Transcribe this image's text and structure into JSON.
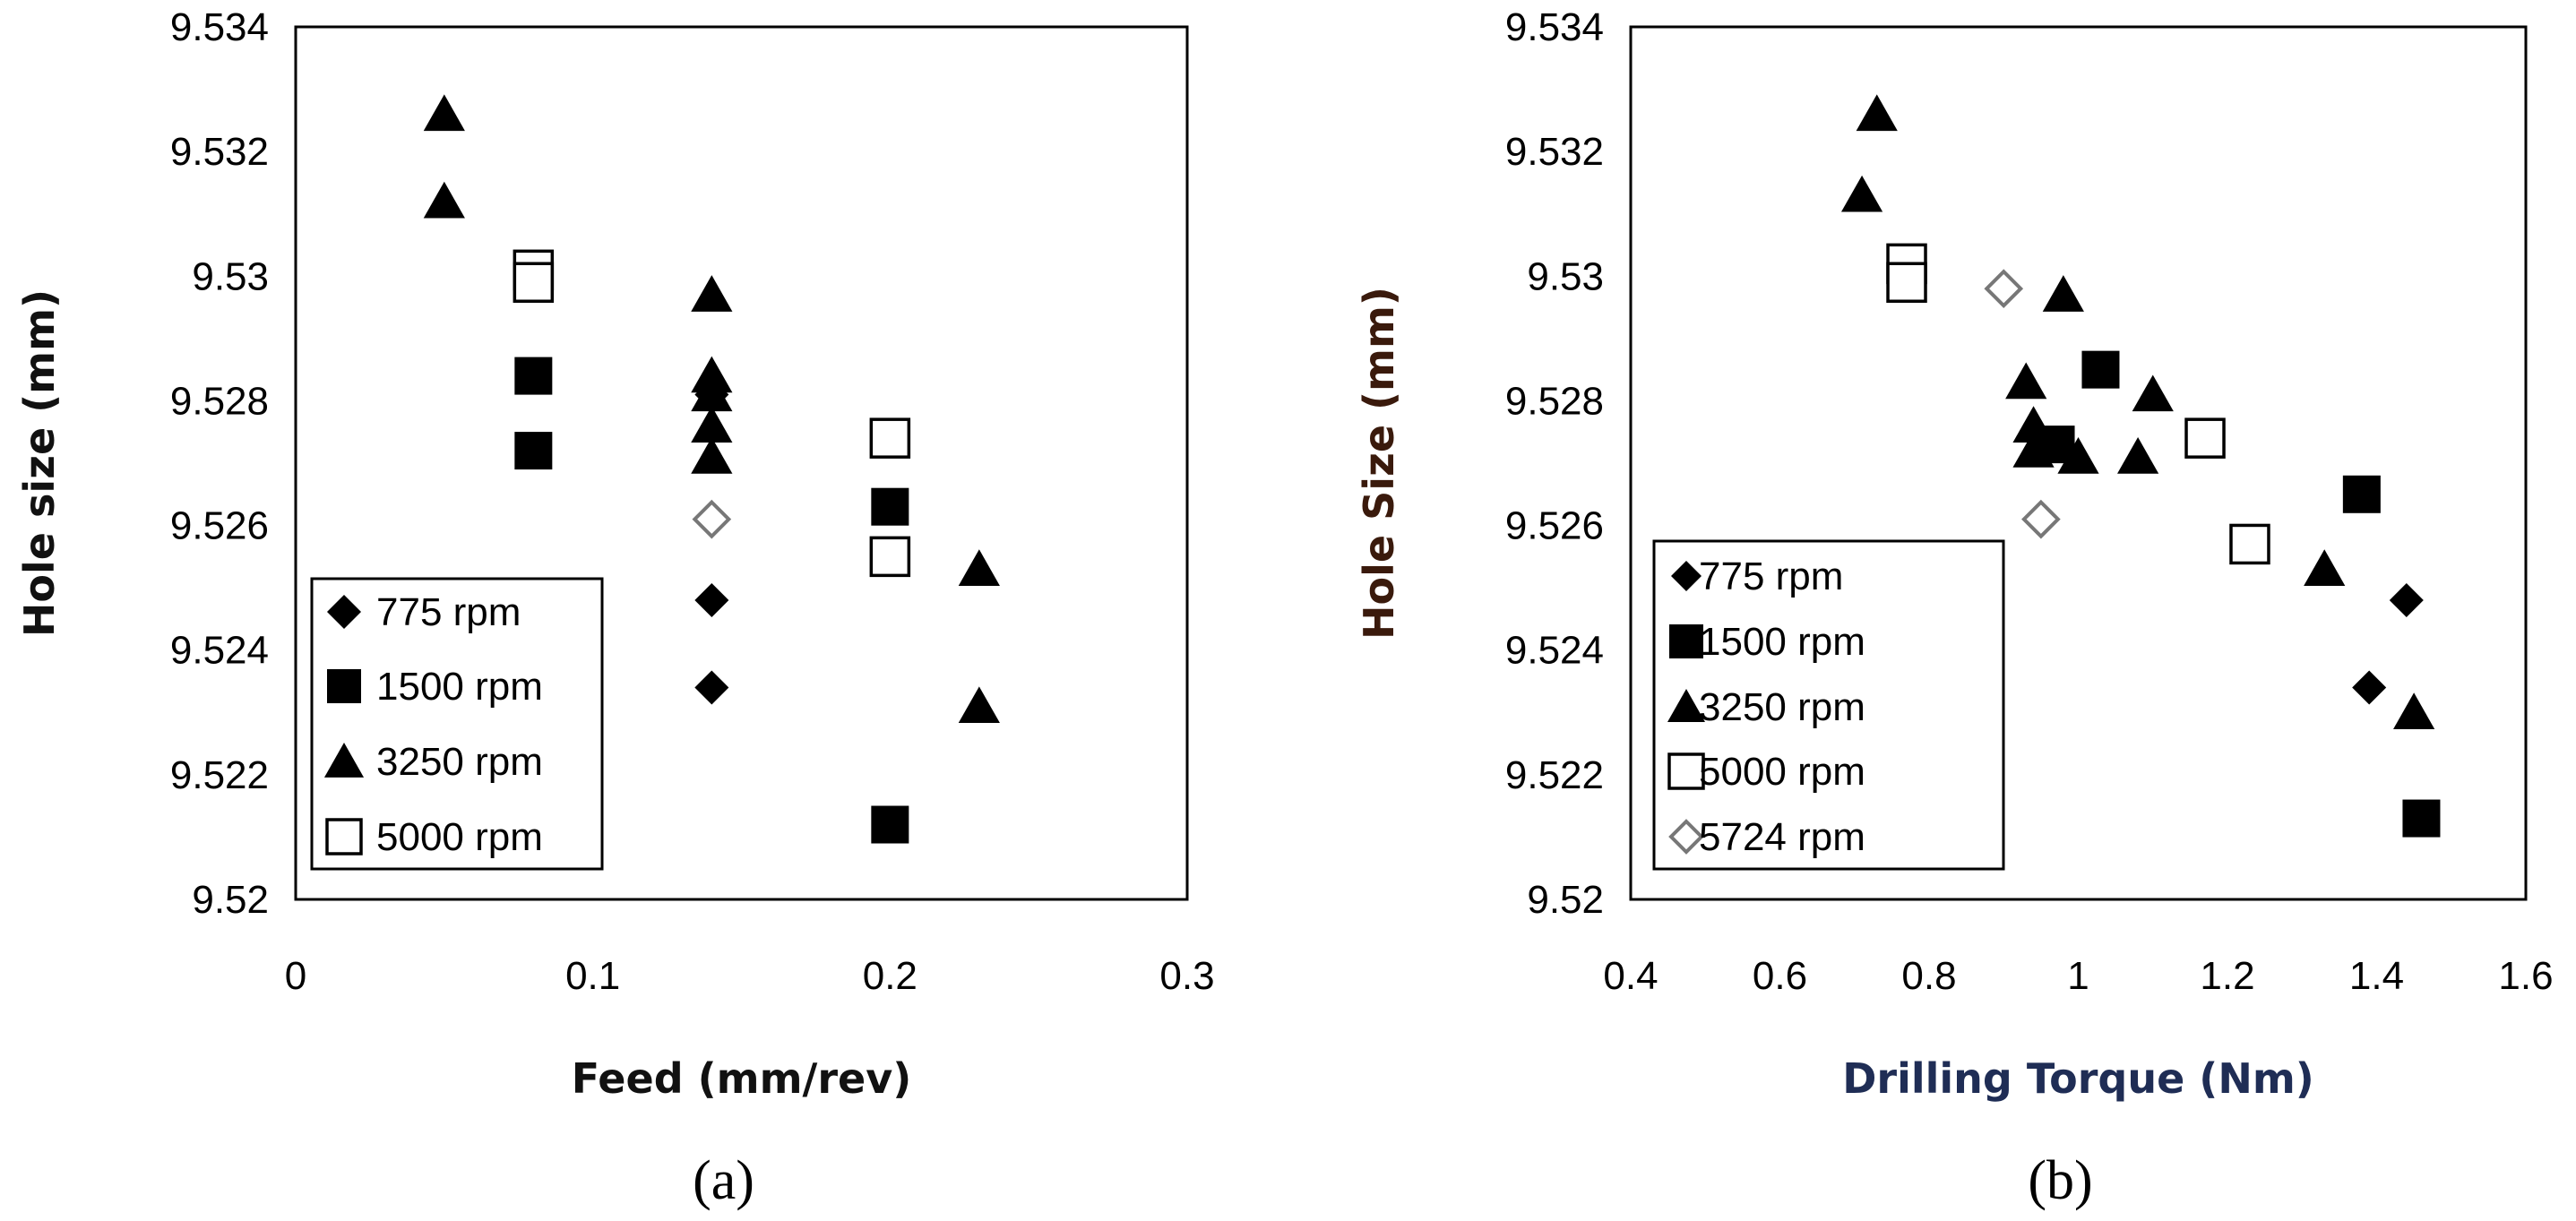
{
  "chart_data": [
    {
      "type": "scatter",
      "panel_label": "(a)",
      "xlabel": "Feed (mm/rev)",
      "ylabel": "Hole size (mm)",
      "xlim": [
        0,
        0.3
      ],
      "ylim": [
        9.52,
        9.534
      ],
      "xticks": [
        "0",
        "0.1",
        "0.2",
        "0.3"
      ],
      "yticks": [
        "9.52",
        "9.522",
        "9.524",
        "9.526",
        "9.528",
        "9.53",
        "9.532",
        "9.534"
      ],
      "legend_position": "bottom-left",
      "legend": [
        {
          "label": "775 rpm",
          "marker": "diamond-filled"
        },
        {
          "label": "1500 rpm",
          "marker": "square-filled"
        },
        {
          "label": "3250 rpm",
          "marker": "triangle-filled"
        },
        {
          "label": "5000 rpm",
          "marker": "square-open"
        }
      ],
      "series": [
        {
          "marker": "diamond-filled",
          "points": [
            [
              0.14,
              9.5248
            ],
            [
              0.14,
              9.5234
            ],
            [
              0.14,
              9.5281
            ]
          ]
        },
        {
          "marker": "square-filled",
          "points": [
            [
              0.08,
              9.5284
            ],
            [
              0.08,
              9.5272
            ],
            [
              0.2,
              9.5263
            ],
            [
              0.2,
              9.5212
            ]
          ]
        },
        {
          "marker": "triangle-filled",
          "points": [
            [
              0.05,
              9.5326
            ],
            [
              0.05,
              9.5312
            ],
            [
              0.14,
              9.5297
            ],
            [
              0.14,
              9.5284
            ],
            [
              0.14,
              9.5281
            ],
            [
              0.14,
              9.5276
            ],
            [
              0.14,
              9.5271
            ],
            [
              0.23,
              9.5253
            ],
            [
              0.23,
              9.5231
            ]
          ]
        },
        {
          "marker": "square-open",
          "points": [
            [
              0.08,
              9.5301
            ],
            [
              0.08,
              9.5299
            ],
            [
              0.2,
              9.5274
            ],
            [
              0.2,
              9.5255
            ]
          ]
        },
        {
          "marker": "diamond-open",
          "points": [
            [
              0.14,
              9.5261
            ]
          ]
        }
      ]
    },
    {
      "type": "scatter",
      "panel_label": "(b)",
      "xlabel": "Drilling Torque (Nm)",
      "ylabel": "Hole Size (mm)",
      "xlim": [
        0.4,
        1.6
      ],
      "ylim": [
        9.52,
        9.534
      ],
      "xticks": [
        "0.4",
        "0.6",
        "0.8",
        "1",
        "1.2",
        "1.4",
        "1.6"
      ],
      "yticks": [
        "9.52",
        "9.522",
        "9.524",
        "9.526",
        "9.528",
        "9.53",
        "9.532",
        "9.534"
      ],
      "legend_position": "bottom-left",
      "legend": [
        {
          "label": "775 rpm",
          "marker": "diamond-filled"
        },
        {
          "label": "1500 rpm",
          "marker": "square-filled"
        },
        {
          "label": "3250 rpm",
          "marker": "triangle-filled"
        },
        {
          "label": "5000 rpm",
          "marker": "square-open"
        },
        {
          "label": "5724 rpm",
          "marker": "diamond-open"
        }
      ],
      "series": [
        {
          "marker": "diamond-filled",
          "points": [
            [
              1.44,
              9.5248
            ],
            [
              1.39,
              9.5234
            ]
          ]
        },
        {
          "marker": "square-filled",
          "points": [
            [
              1.03,
              9.5285
            ],
            [
              0.97,
              9.5273
            ],
            [
              1.38,
              9.5265
            ],
            [
              1.46,
              9.5213
            ]
          ]
        },
        {
          "marker": "triangle-filled",
          "points": [
            [
              0.73,
              9.5326
            ],
            [
              0.71,
              9.5313
            ],
            [
              0.98,
              9.5297
            ],
            [
              0.93,
              9.5283
            ],
            [
              1.1,
              9.5281
            ],
            [
              0.94,
              9.5276
            ],
            [
              0.94,
              9.5272
            ],
            [
              1.0,
              9.5271
            ],
            [
              1.08,
              9.5271
            ],
            [
              1.33,
              9.5253
            ],
            [
              1.45,
              9.523
            ]
          ]
        },
        {
          "marker": "square-open",
          "points": [
            [
              0.77,
              9.5302
            ],
            [
              0.77,
              9.5299
            ],
            [
              1.17,
              9.5274
            ],
            [
              1.23,
              9.5257
            ]
          ]
        },
        {
          "marker": "diamond-open",
          "points": [
            [
              0.9,
              9.5298
            ],
            [
              0.95,
              9.5261
            ]
          ]
        }
      ]
    }
  ]
}
